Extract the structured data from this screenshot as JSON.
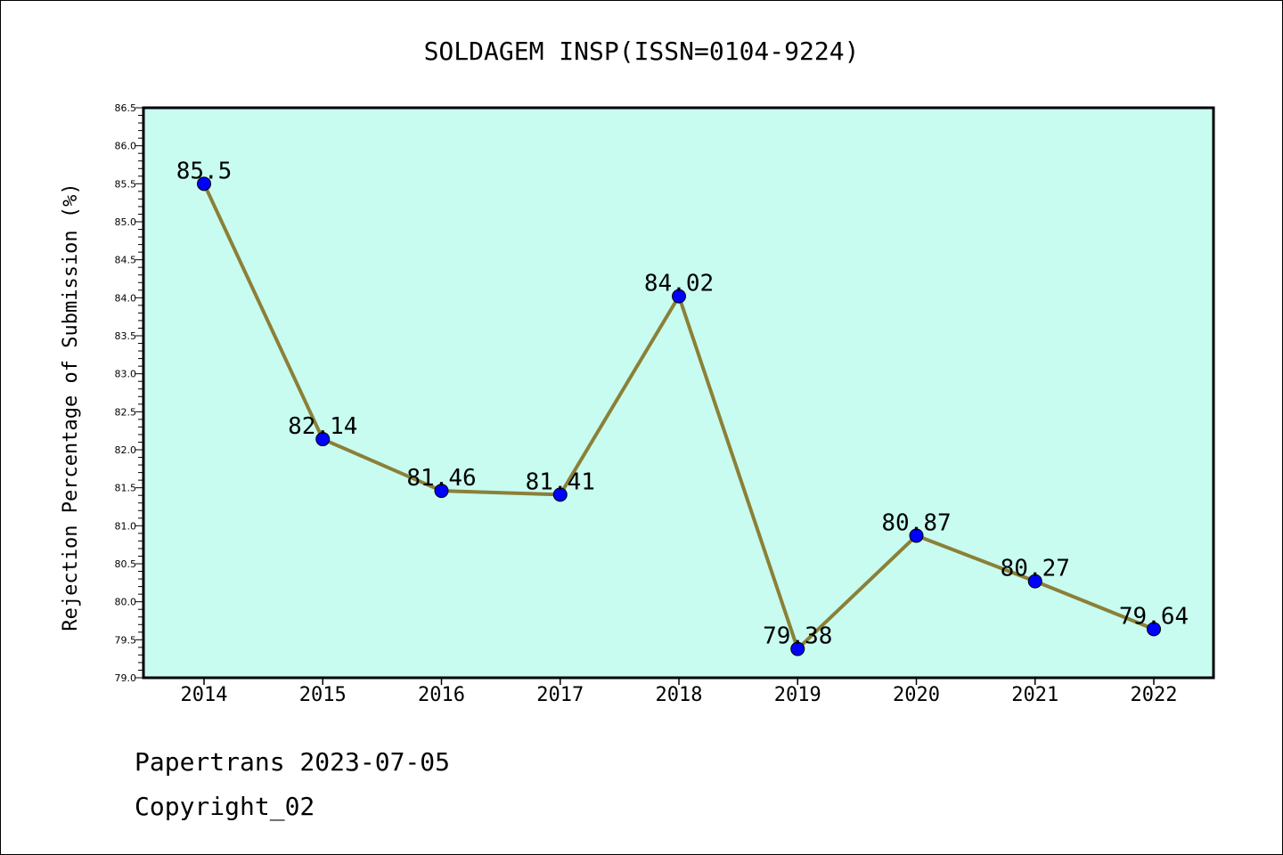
{
  "chart_data": {
    "type": "line",
    "title": "SOLDAGEM INSP(ISSN=0104-9224)",
    "xlabel": "",
    "ylabel": "Rejection Percentage of Submission (%)",
    "categories": [
      "2014",
      "2015",
      "2016",
      "2017",
      "2018",
      "2019",
      "2020",
      "2021",
      "2022"
    ],
    "values": [
      85.5,
      82.14,
      81.46,
      81.41,
      84.02,
      79.38,
      80.87,
      80.27,
      79.64
    ],
    "data_labels": [
      "85.5",
      "82.14",
      "81.46",
      "81.41",
      "84.02",
      "79.38",
      "80.87",
      "80.27",
      "79.64"
    ],
    "ylim": [
      79.0,
      86.5
    ],
    "yticks": [
      "79.0",
      "79.5",
      "80.0",
      "80.5",
      "81.0",
      "81.5",
      "82.0",
      "82.5",
      "83.0",
      "83.5",
      "84.0",
      "84.5",
      "85.0",
      "85.5",
      "86.0",
      "86.5"
    ],
    "grid": false,
    "colors": {
      "plot_background": "#c8fcf0",
      "line": "#8b8038",
      "marker": "#0000ff"
    }
  },
  "footer": {
    "line1": "Papertrans 2023-07-05",
    "line2": "Copyright_02"
  }
}
